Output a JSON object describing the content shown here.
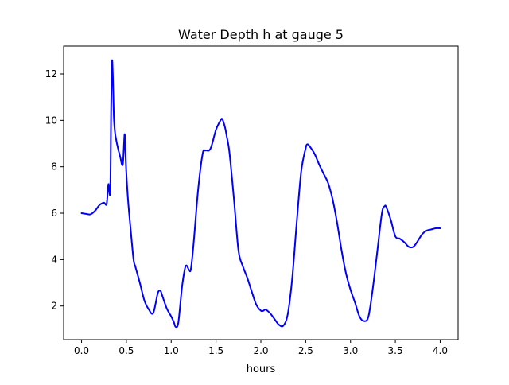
{
  "chart_data": {
    "type": "line",
    "title": "Water Depth h at gauge 5",
    "xlabel": "hours",
    "ylabel": "",
    "xlim": [
      -0.2,
      4.2
    ],
    "ylim": [
      0.55,
      13.2
    ],
    "xticks": [
      0.0,
      0.5,
      1.0,
      1.5,
      2.0,
      2.5,
      3.0,
      3.5,
      4.0
    ],
    "xtick_labels": [
      "0.0",
      "0.5",
      "1.0",
      "1.5",
      "2.0",
      "2.5",
      "3.0",
      "3.5",
      "4.0"
    ],
    "yticks": [
      2,
      4,
      6,
      8,
      10,
      12
    ],
    "ytick_labels": [
      "2",
      "4",
      "6",
      "8",
      "10",
      "12"
    ],
    "grid": false,
    "series": [
      {
        "color": "#0000ff",
        "x": [
          0.0,
          0.05,
          0.1,
          0.15,
          0.2,
          0.25,
          0.28,
          0.3,
          0.32,
          0.33,
          0.34,
          0.35,
          0.36,
          0.37,
          0.38,
          0.4,
          0.43,
          0.46,
          0.48,
          0.49,
          0.5,
          0.52,
          0.55,
          0.58,
          0.6,
          0.65,
          0.7,
          0.75,
          0.8,
          0.85,
          0.88,
          0.9,
          0.95,
          1.0,
          1.03,
          1.05,
          1.08,
          1.12,
          1.15,
          1.17,
          1.2,
          1.22,
          1.25,
          1.3,
          1.35,
          1.38,
          1.42,
          1.45,
          1.5,
          1.55,
          1.57,
          1.6,
          1.62,
          1.65,
          1.7,
          1.75,
          1.8,
          1.85,
          1.9,
          1.95,
          2.0,
          2.03,
          2.05,
          2.1,
          2.15,
          2.2,
          2.25,
          2.3,
          2.35,
          2.4,
          2.45,
          2.5,
          2.52,
          2.55,
          2.6,
          2.65,
          2.7,
          2.75,
          2.8,
          2.85,
          2.9,
          2.95,
          3.0,
          3.05,
          3.1,
          3.15,
          3.2,
          3.25,
          3.3,
          3.35,
          3.38,
          3.4,
          3.45,
          3.5,
          3.55,
          3.6,
          3.65,
          3.7,
          3.75,
          3.8,
          3.85,
          3.9,
          3.95,
          4.0
        ],
        "y": [
          6.0,
          5.97,
          5.95,
          6.1,
          6.35,
          6.45,
          6.4,
          7.25,
          6.95,
          10.5,
          12.55,
          11.8,
          10.2,
          9.6,
          9.3,
          8.9,
          8.45,
          8.1,
          9.4,
          8.6,
          7.7,
          6.5,
          5.2,
          4.0,
          3.7,
          3.0,
          2.25,
          1.85,
          1.7,
          2.55,
          2.65,
          2.45,
          1.9,
          1.55,
          1.3,
          1.1,
          1.3,
          2.8,
          3.55,
          3.75,
          3.55,
          3.6,
          4.7,
          7.0,
          8.55,
          8.7,
          8.7,
          8.9,
          9.6,
          10.0,
          10.05,
          9.7,
          9.3,
          8.6,
          6.6,
          4.4,
          3.7,
          3.2,
          2.6,
          2.05,
          1.8,
          1.8,
          1.85,
          1.7,
          1.45,
          1.2,
          1.15,
          1.65,
          3.2,
          5.6,
          7.8,
          8.8,
          8.97,
          8.85,
          8.55,
          8.1,
          7.7,
          7.3,
          6.6,
          5.6,
          4.4,
          3.4,
          2.7,
          2.15,
          1.55,
          1.35,
          1.55,
          2.8,
          4.4,
          6.0,
          6.3,
          6.25,
          5.7,
          5.0,
          4.9,
          4.75,
          4.55,
          4.55,
          4.8,
          5.1,
          5.25,
          5.3,
          5.35,
          5.35
        ]
      }
    ]
  }
}
